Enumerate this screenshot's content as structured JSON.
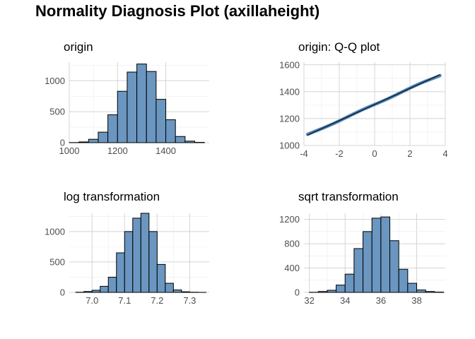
{
  "title": "Normality Diagnosis Plot (axillaheight)",
  "chart_data": [
    {
      "type": "bar",
      "title": "origin",
      "bin_edges": [
        1000,
        1040,
        1080,
        1120,
        1160,
        1200,
        1240,
        1280,
        1320,
        1360,
        1400,
        1440,
        1480,
        1520,
        1560
      ],
      "values": [
        2,
        12,
        55,
        170,
        450,
        830,
        1140,
        1270,
        1150,
        700,
        370,
        100,
        25,
        5
      ],
      "xlim": [
        1000,
        1580
      ],
      "ylim": [
        0,
        1300
      ],
      "xticks": [
        1000,
        1200,
        1400
      ],
      "yticks": [
        0,
        500,
        1000
      ],
      "grid": true
    },
    {
      "type": "scatter",
      "title": "origin: Q-Q plot",
      "xlim": [
        -4,
        4
      ],
      "ylim": [
        1000,
        1620
      ],
      "xticks": [
        -4,
        -2,
        0,
        2,
        4
      ],
      "yticks": [
        1000,
        1200,
        1400,
        1600
      ],
      "reference_line": {
        "slope": 60,
        "intercept": 1305,
        "x_range": [
          -3.8,
          3.7
        ]
      },
      "point_x_range": [
        -3.8,
        3.7
      ],
      "grid": true
    },
    {
      "type": "bar",
      "title": "log transformation",
      "bin_edges": [
        6.95,
        6.975,
        7.0,
        7.025,
        7.05,
        7.075,
        7.1,
        7.125,
        7.15,
        7.175,
        7.2,
        7.225,
        7.25,
        7.275,
        7.3,
        7.325,
        7.35
      ],
      "values": [
        3,
        15,
        35,
        100,
        250,
        650,
        1000,
        1220,
        1300,
        1000,
        460,
        150,
        40,
        10,
        3,
        1
      ],
      "xlim": [
        6.93,
        7.36
      ],
      "ylim": [
        0,
        1300
      ],
      "xticks": [
        7.0,
        7.1,
        7.2,
        7.3
      ],
      "yticks": [
        0,
        500,
        1000
      ],
      "grid": true
    },
    {
      "type": "bar",
      "title": "sqrt transformation",
      "bin_edges": [
        32,
        32.5,
        33,
        33.5,
        34,
        34.5,
        35,
        35.5,
        36,
        36.5,
        37,
        37.5,
        38,
        38.5,
        39,
        39.5
      ],
      "values": [
        2,
        15,
        35,
        120,
        300,
        720,
        1000,
        1220,
        1240,
        850,
        380,
        150,
        40,
        15,
        5
      ],
      "xlim": [
        31.7,
        39.6
      ],
      "ylim": [
        0,
        1300
      ],
      "xticks": [
        32,
        34,
        36,
        38
      ],
      "yticks": [
        0,
        400,
        800,
        1200
      ],
      "grid": true
    }
  ]
}
